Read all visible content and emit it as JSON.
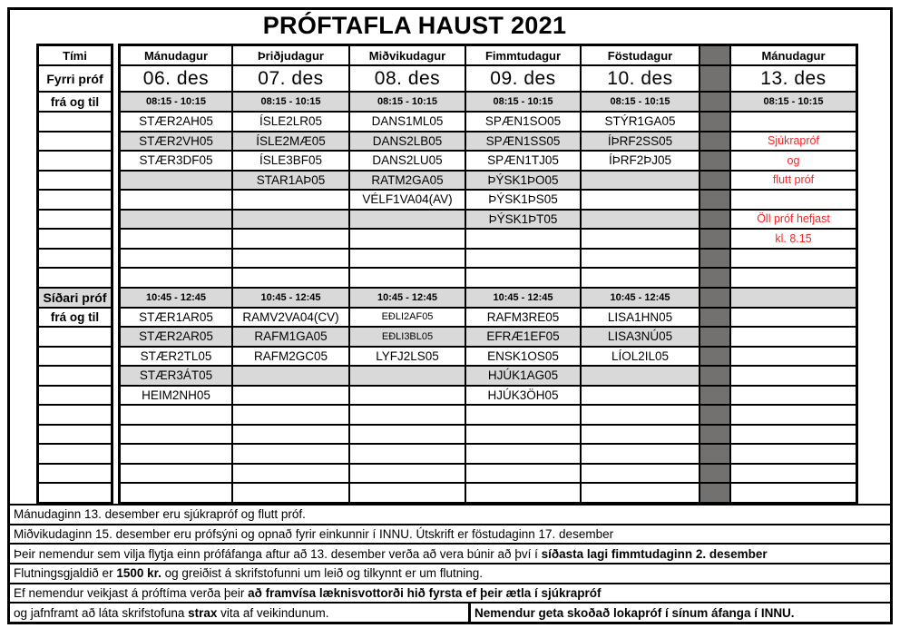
{
  "title": "PRÓFTAFLA HAUST 2021",
  "colors": {
    "row_gray": "#d9d9d9",
    "spacer_gray": "#737070",
    "note_red": "#ff1f1f"
  },
  "schedule": {
    "corner_label": "Tími",
    "first_section_label": "Fyrri próf",
    "from_to_label": "frá og til",
    "second_section_label": "Síðari próf",
    "day_headers": [
      "Mánudagur",
      "Þriðjudagur",
      "Miðvikudagur",
      "Fimmtudagur",
      "Föstudagur",
      "Mánudagur"
    ],
    "dates": [
      "06. des",
      "07. des",
      "08. des",
      "09. des",
      "10. des",
      "13. des"
    ],
    "first_session_time": "08:15 - 10:15",
    "second_session_time": "10:45 - 12:45",
    "first_session_rows": [
      [
        "STÆR2AH05",
        "ÍSLE2LR05",
        "DANS1ML05",
        "SPÆN1SO05",
        "STÝR1GA05",
        ""
      ],
      [
        "STÆR2VH05",
        "ÍSLE2MÆ05",
        "DANS2LB05",
        "SPÆN1SS05",
        "ÍÞRF2SS05",
        "Sjúkrapróf"
      ],
      [
        "STÆR3DF05",
        "ÍSLE3BF05",
        "DANS2LU05",
        "SPÆN1TJ05",
        "ÍÞRF2ÞJ05",
        "og"
      ],
      [
        "",
        "STAR1AÞ05",
        "RATM2GA05",
        "ÞÝSK1ÞO05",
        "",
        "flutt próf"
      ],
      [
        "",
        "",
        "VÉLF1VA04(AV)",
        "ÞÝSK1ÞS05",
        "",
        ""
      ],
      [
        "",
        "",
        "",
        "ÞÝSK1ÞT05",
        "",
        "Öll próf hefjast"
      ],
      [
        "",
        "",
        "",
        "",
        "",
        "kl. 8.15"
      ],
      [
        "",
        "",
        "",
        "",
        "",
        ""
      ],
      [
        "",
        "",
        "",
        "",
        "",
        ""
      ]
    ],
    "second_session_rows": [
      [
        "STÆR1AR05",
        "RAMV2VA04(CV)",
        "EÐLI2AF05",
        "RAFM3RE05",
        "LISA1HN05",
        ""
      ],
      [
        "STÆR2AR05",
        "RAFM1GA05",
        "EÐLI3BL05",
        "EFRÆ1EF05",
        "LISA3NÚ05",
        ""
      ],
      [
        "STÆR2TL05",
        "RAFM2GC05",
        "LYFJ2LS05",
        "ENSK1OS05",
        "LÍOL2IL05",
        ""
      ],
      [
        "STÆR3ÁT05",
        "",
        "",
        "HJÚK1AG05",
        "",
        ""
      ],
      [
        "HEIM2NH05",
        "",
        "",
        "HJÚK3ÖH05",
        "",
        ""
      ],
      [
        "",
        "",
        "",
        "",
        "",
        ""
      ],
      [
        "",
        "",
        "",
        "",
        "",
        ""
      ],
      [
        "",
        "",
        "",
        "",
        "",
        ""
      ],
      [
        "",
        "",
        "",
        "",
        "",
        ""
      ],
      [
        "",
        "",
        "",
        "",
        "",
        ""
      ]
    ],
    "small_codes": [
      "EÐLI2AF05",
      "EÐLI3BL05"
    ]
  },
  "notes": [
    [
      [
        {
          "t": "Mánudaginn 13. desember eru sjúkrapróf og flutt próf.",
          "b": false
        }
      ]
    ],
    [
      [
        {
          "t": "Miðvikudaginn 15. desember eru prófsýni og opnað fyrir einkunnir í INNU. Útskrift er föstudaginn 17. desember",
          "b": false
        }
      ]
    ],
    [
      [
        {
          "t": "Þeir nemendur sem vilja flytja einn prófáfanga aftur að 13. desember verða að vera búnir að því í ",
          "b": false
        },
        {
          "t": "síðasta lagi fimmtudaginn 2. desember",
          "b": true
        }
      ]
    ],
    [
      [
        {
          "t": "Flutningsgjaldið er ",
          "b": false
        },
        {
          "t": "1500 kr.",
          "b": true
        },
        {
          "t": " og greiðist á skrifstofunni um leið og tilkynnt er um flutning.",
          "b": false
        }
      ]
    ],
    [
      [
        {
          "t": "Ef nemendur veikjast á próftíma verða þeir ",
          "b": false
        },
        {
          "t": "að framvísa læknisvottorði hið fyrsta ef þeir ætla í sjúkrapróf",
          "b": true
        }
      ]
    ],
    [
      [
        {
          "t": "og jafnframt að láta skrifstofuna ",
          "b": false
        },
        {
          "t": "strax",
          "b": true
        },
        {
          "t": " vita af veikindunum.",
          "b": false
        }
      ],
      [
        {
          "t": "Nemendur geta skoðað lokapróf í sínum áfanga í INNU.",
          "b": true
        }
      ]
    ]
  ]
}
